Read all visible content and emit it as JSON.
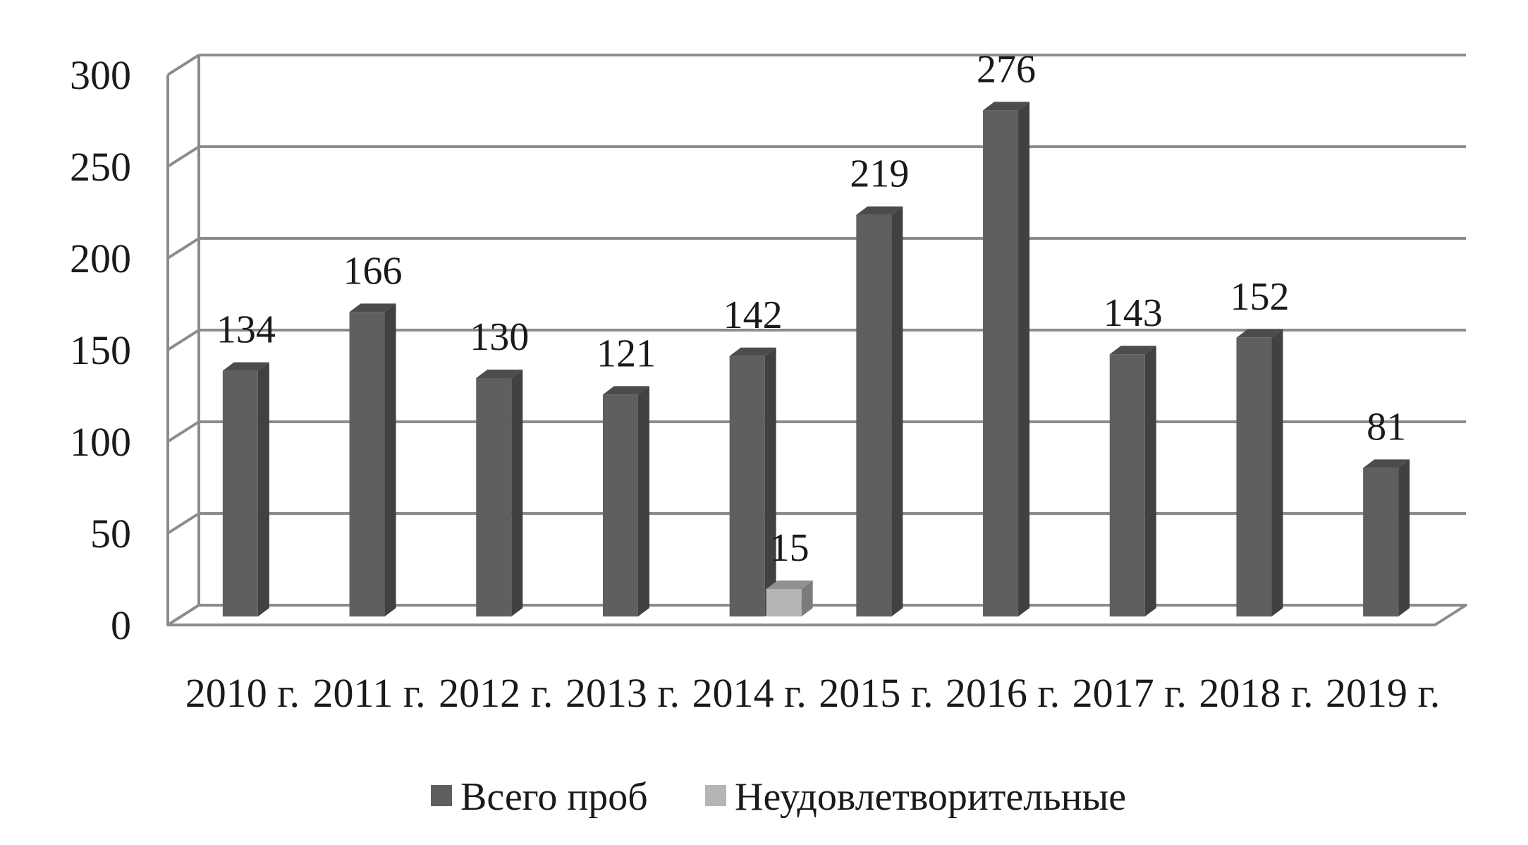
{
  "chart_data": {
    "type": "bar",
    "categories": [
      "2010 г.",
      "2011 г.",
      "2012 г.",
      "2013 г.",
      "2014 г.",
      "2015 г.",
      "2016 г.",
      "2017 г.",
      "2018 г.",
      "2019 г."
    ],
    "series": [
      {
        "name": "Всего проб",
        "values": [
          134,
          166,
          130,
          121,
          142,
          219,
          276,
          143,
          152,
          81
        ],
        "labels": [
          "134",
          "166",
          "130",
          "121",
          "142",
          "219",
          "276",
          "143",
          "152",
          "81"
        ],
        "color": "#5f5f5f"
      },
      {
        "name": "Неудовлетворительные",
        "values": [
          null,
          null,
          null,
          null,
          15,
          null,
          null,
          null,
          null,
          null
        ],
        "labels": [
          null,
          null,
          null,
          null,
          "15",
          null,
          null,
          null,
          null,
          null
        ],
        "color": "#b5b5b5"
      }
    ],
    "ylim": [
      0,
      300
    ],
    "yticks": [
      "0",
      "50",
      "100",
      "150",
      "200",
      "250",
      "300"
    ],
    "grid": true,
    "legend_position": "bottom",
    "style": "3d-column"
  },
  "colors": {
    "grid": "#8c8c8c",
    "bar_dark": "#5f5f5f",
    "bar_light": "#b5b5b5"
  }
}
